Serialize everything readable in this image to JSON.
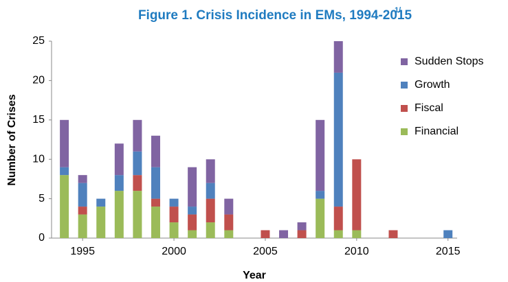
{
  "chart_data": {
    "type": "stacked_bar",
    "title": "Figure 1. Crisis Incidence in EMs, 1994-2015",
    "title_superscript": "1/",
    "x_label": "Year",
    "y_label": "Number of Crises",
    "x": [
      1994,
      1995,
      1996,
      1997,
      1998,
      1999,
      2000,
      2001,
      2002,
      2003,
      2004,
      2005,
      2006,
      2007,
      2008,
      2009,
      2010,
      2011,
      2012,
      2013,
      2014,
      2015
    ],
    "series": [
      {
        "name": "Financial",
        "color": "#9bbb59",
        "values": [
          8,
          3,
          4,
          6,
          6,
          4,
          2,
          1,
          2,
          1,
          0,
          0,
          0,
          0,
          5,
          1,
          1,
          0,
          0,
          0,
          0,
          0
        ]
      },
      {
        "name": "Fiscal",
        "color": "#c0504d",
        "values": [
          0,
          1,
          0,
          0,
          2,
          1,
          2,
          2,
          3,
          2,
          0,
          1,
          0,
          1,
          0,
          3,
          9,
          0,
          1,
          0,
          0,
          0
        ]
      },
      {
        "name": "Growth",
        "color": "#4f81bd",
        "values": [
          1,
          3,
          1,
          2,
          3,
          4,
          1,
          1,
          2,
          0,
          0,
          0,
          0,
          0,
          1,
          17,
          0,
          0,
          0,
          0,
          0,
          1
        ]
      },
      {
        "name": "Sudden Stops",
        "color": "#8064a2",
        "values": [
          6,
          1,
          0,
          4,
          4,
          4,
          0,
          5,
          3,
          2,
          0,
          0,
          1,
          1,
          9,
          4,
          0,
          0,
          0,
          0,
          0,
          0
        ]
      }
    ],
    "xlim": [
      1993.3,
      2015.5
    ],
    "xticks": [
      1995,
      2000,
      2005,
      2010,
      2015
    ],
    "ylim": [
      0,
      25
    ],
    "yticks": [
      0,
      5,
      10,
      15,
      20,
      25
    ],
    "grid": false,
    "legend": "right"
  }
}
